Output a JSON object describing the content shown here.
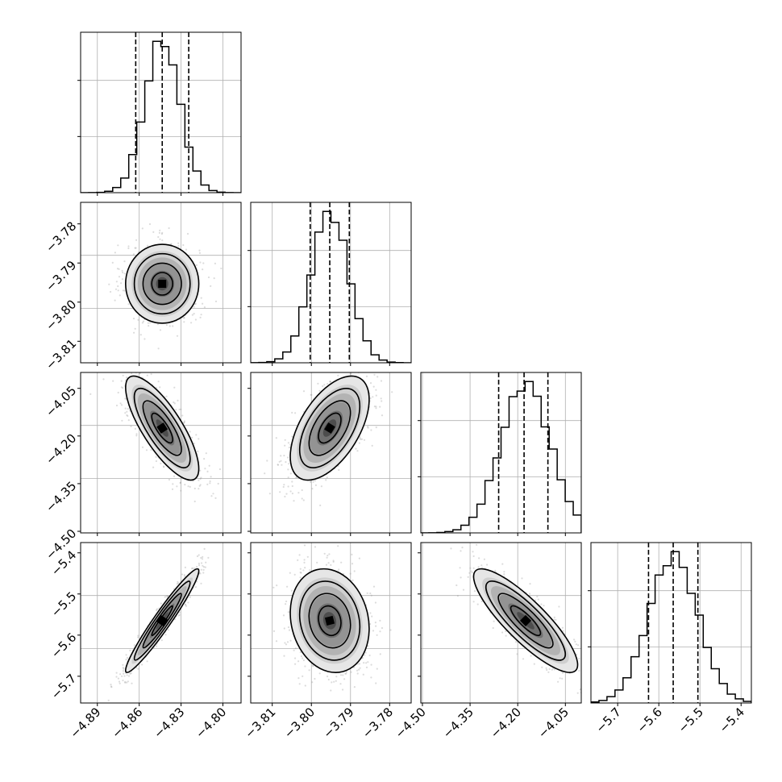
{
  "chart_data": {
    "type": "corner",
    "grid": true,
    "parameter_count": 4,
    "parameters": [
      {
        "ticks": [
          "-4.89",
          "-4.86",
          "-4.83",
          "-4.80"
        ],
        "tick_values": [
          -4.89,
          -4.86,
          -4.83,
          -4.8
        ],
        "range": [
          -4.902,
          -4.787
        ],
        "quantiles": [
          -4.8625,
          -4.8435,
          -4.8245
        ],
        "mean": -4.8435,
        "sd": 0.0125
      },
      {
        "ticks": [
          "-3.81",
          "-3.80",
          "-3.79",
          "-3.78"
        ],
        "tick_values": [
          -3.81,
          -3.8,
          -3.79,
          -3.78
        ],
        "range": [
          -3.8155,
          -3.7745
        ],
        "quantiles": [
          -3.8003,
          -3.7953,
          -3.7903
        ],
        "mean": -3.7953,
        "sd": 0.0048
      },
      {
        "ticks": [
          "-4.50",
          "-4.35",
          "-4.20",
          "-4.05"
        ],
        "tick_values": [
          -4.5,
          -4.35,
          -4.2,
          -4.05
        ],
        "range": [
          -4.505,
          -4.0
        ],
        "quantiles": [
          -4.26,
          -4.18,
          -4.105
        ],
        "mean": -4.175,
        "sd": 0.078
      },
      {
        "ticks": [
          "-5.7",
          "-5.6",
          "-5.5",
          "-5.4"
        ],
        "tick_values": [
          -5.7,
          -5.6,
          -5.5,
          -5.4
        ],
        "range": [
          -5.765,
          -5.375
        ],
        "quantiles": [
          -5.625,
          -5.565,
          -5.505
        ],
        "mean": -5.565,
        "sd": 0.06
      }
    ],
    "correlations": [
      {
        "x": 0,
        "y": 1,
        "rho": 0.0
      },
      {
        "x": 0,
        "y": 2,
        "rho": -0.78
      },
      {
        "x": 1,
        "y": 2,
        "rho": 0.55
      },
      {
        "x": 0,
        "y": 3,
        "rho": 0.96
      },
      {
        "x": 1,
        "y": 3,
        "rho": -0.15
      },
      {
        "x": 2,
        "y": 3,
        "rho": -0.85
      }
    ],
    "histogram_bins": 20,
    "contour_levels_sigma": [
      0.5,
      1.0,
      1.5,
      2.0
    ],
    "colors": {
      "line": "#000000",
      "grid": "#b0b0b0",
      "scatter": "#9a9a9a",
      "density": "#000000"
    }
  }
}
